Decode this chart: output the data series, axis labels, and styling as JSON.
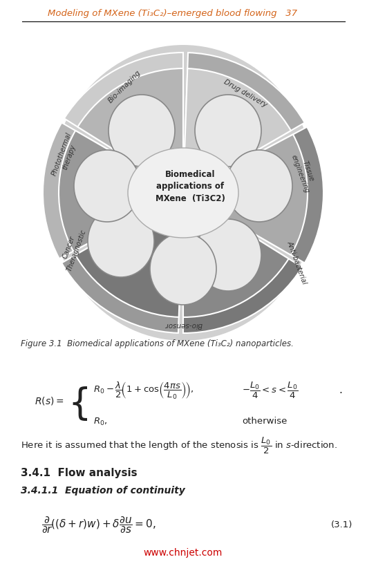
{
  "header_text": "Modeling of MXene (Ti₃C₂)–emerged blood flowing   37",
  "header_color": "#d4641a",
  "header_fontsize": 9.5,
  "bg_color": "#ffffff",
  "figure_caption": "Figure 3.1  Biomedical applications of MXene (Ti₃C₂) nanoparticles.",
  "figure_caption_fontsize": 8.5,
  "equation_label": "(3.1)",
  "section_341": "3.4.1  Flow analysis",
  "section_3411": "3.4.1.1  Equation of continuity",
  "website": "www.chnjet.com",
  "website_color": "#cc0000"
}
